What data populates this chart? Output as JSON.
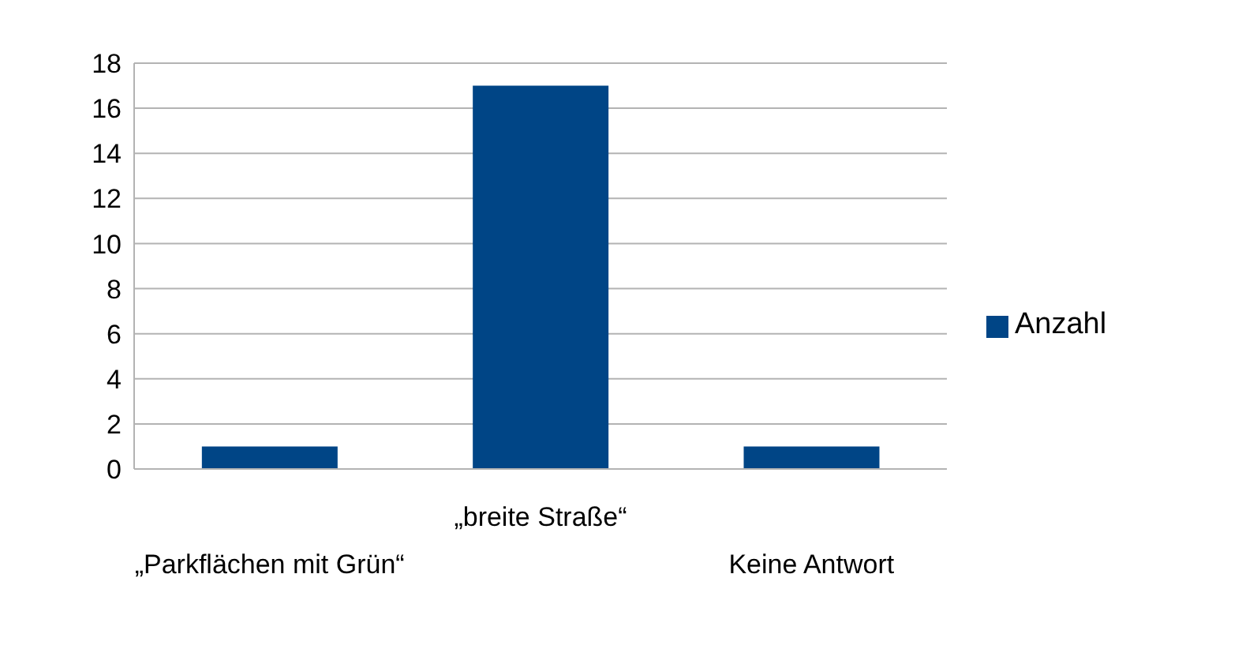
{
  "chart_data": {
    "type": "bar",
    "categories": [
      "„Parkflächen mit Grün“",
      "„breite Straße“",
      "Keine Antwort"
    ],
    "series": [
      {
        "name": "Anzahl",
        "color": "#004586",
        "values": [
          1,
          17,
          1
        ]
      }
    ],
    "ylim": [
      0,
      18
    ],
    "yticks": [
      0,
      2,
      4,
      6,
      8,
      10,
      12,
      14,
      16,
      18
    ],
    "grid": "y",
    "legend": "right"
  }
}
